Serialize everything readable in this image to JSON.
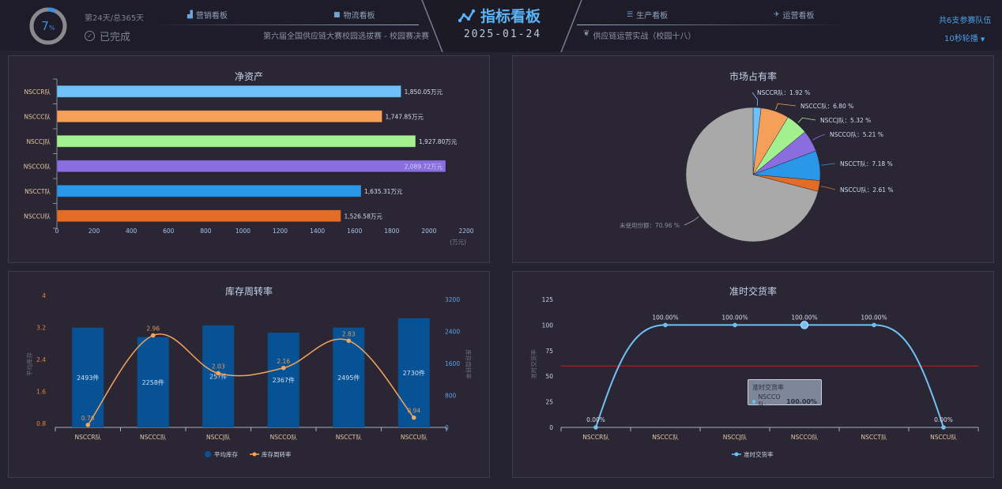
{
  "header": {
    "progress": {
      "percent": 7,
      "percent_text": "7",
      "percent_sign": "%"
    },
    "day_text": "第24天/总365天",
    "status_text": "已完成",
    "nav_left": [
      {
        "label": "营销看板",
        "icon": "bar-chart-icon"
      },
      {
        "label": "物流看板",
        "icon": "truck-icon"
      }
    ],
    "nav_right": [
      {
        "label": "生产看板",
        "icon": "list-icon"
      },
      {
        "label": "运营看板",
        "icon": "plane-icon"
      }
    ],
    "subtitle_left": "第六届全国供应链大赛校园选拔赛 - 校园赛决赛",
    "subtitle_right": "供应链运营实战（校园十八）",
    "title": "指标看板",
    "date": "2025-01-24",
    "team_count": "共6支参赛队伍",
    "rotate_label": "10秒轮播"
  },
  "colors": {
    "accent": "#4a9fe6",
    "bg": "#262330",
    "panel": "#2a2634",
    "team_colors": [
      "#6ec1f8",
      "#f4a05a",
      "#a3f08e",
      "#8a6ee0",
      "#2a97e8",
      "#e36d26"
    ],
    "unused": "#a9a9a9",
    "bar_blue": "#075294",
    "line_orange": "#f5a55a",
    "threshold_red": "#e01616"
  },
  "chart_data": [
    {
      "id": "net-assets",
      "type": "bar",
      "orientation": "horizontal",
      "title": "净资产",
      "categories": [
        "NSCCR队",
        "NSCCC队",
        "NSCCJ队",
        "NSCCO队",
        "NSCCT队",
        "NSCCU队"
      ],
      "values": [
        1850.05,
        1747.85,
        1927.8,
        2089.72,
        1635.31,
        1526.58
      ],
      "value_labels": [
        "1,850.05万元",
        "1,747.85万元",
        "1,927.80万元",
        "2,089.72万元",
        "1,635.31万元",
        "1,526.58万元"
      ],
      "xlim": [
        0,
        2200
      ],
      "xticks": [
        "0",
        "200",
        "400",
        "600",
        "800",
        "1000",
        "1200",
        "1400",
        "1600",
        "1800",
        "2000",
        "2200"
      ],
      "xlabel": "(万元)"
    },
    {
      "id": "market-share",
      "type": "pie",
      "title": "市场占有率",
      "slices": [
        {
          "label": "NSCCR队",
          "value": 1.92,
          "text": "NSCCR队：1.92 %"
        },
        {
          "label": "NSCCC队",
          "value": 6.8,
          "text": "NSCCC队：6.80 %"
        },
        {
          "label": "NSCCJ队",
          "value": 5.32,
          "text": "NSCCJ队：5.32 %"
        },
        {
          "label": "NSCCO队",
          "value": 5.21,
          "text": "NSCCO队：5.21 %"
        },
        {
          "label": "NSCCT队",
          "value": 7.18,
          "text": "NSCCT队：7.18 %"
        },
        {
          "label": "NSCCU队",
          "value": 2.61,
          "text": "NSCCU队：2.61 %"
        },
        {
          "label": "未使用份额",
          "value": 70.96,
          "text": "未使用份额：70.96 %"
        }
      ]
    },
    {
      "id": "inventory-turnover",
      "type": "bar",
      "title": "库存周转率",
      "categories": [
        "NSCCR队",
        "NSCCC队",
        "NSCCJ队",
        "NSCCO队",
        "NSCCT队",
        "NSCCU队"
      ],
      "series": [
        {
          "name": "平均库存",
          "kind": "bar",
          "axis": "right",
          "values": [
            2493,
            2258,
            2550,
            2367,
            2495,
            2730
          ],
          "labels": [
            "2493件",
            "2258件",
            "25?件",
            "2367件",
            "2495件",
            "2730件"
          ]
        },
        {
          "name": "库存周转率",
          "kind": "line",
          "axis": "left",
          "values": [
            0.76,
            2.96,
            2.03,
            2.16,
            2.83,
            0.94
          ],
          "labels": [
            "0.76",
            "2.96",
            "2.03",
            "2.16",
            "2.83",
            "0.94"
          ]
        }
      ],
      "left_axis": {
        "name": "平均库存",
        "range": [
          0.8,
          4
        ],
        "ticks": [
          "0.8",
          "1.6",
          "2.4",
          "3.2",
          "4"
        ]
      },
      "right_axis": {
        "name": "库存周转率",
        "range": [
          0,
          3200
        ],
        "ticks": [
          "0",
          "800",
          "1600",
          "2400",
          "3200"
        ]
      },
      "legend": [
        "平均库存",
        "库存周转率"
      ],
      "legend_position": "bottom"
    },
    {
      "id": "on-time-delivery",
      "type": "line",
      "title": "准时交货率",
      "categories": [
        "NSCCR队",
        "NSCCC队",
        "NSCCJ队",
        "NSCCO队",
        "NSCCT队",
        "NSCCU队"
      ],
      "values": [
        0,
        100,
        100,
        100,
        100,
        0
      ],
      "labels": [
        "0.00%",
        "100.00%",
        "100.00%",
        "100.00%",
        "100.00%",
        "0.00%"
      ],
      "ylim": [
        0,
        125
      ],
      "yticks": [
        "0",
        "25",
        "50",
        "75",
        "100",
        "125"
      ],
      "ylabel": "准时交货率",
      "threshold": 60,
      "legend": [
        "准时交货率"
      ],
      "legend_position": "bottom",
      "tooltip": {
        "title": "准时交货率",
        "series_label": "NSCCO队:",
        "value": "100.00%"
      }
    }
  ]
}
